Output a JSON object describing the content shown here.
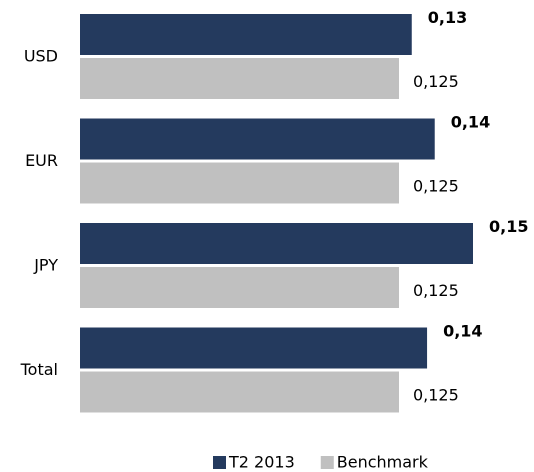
{
  "chart_data": {
    "type": "hbar",
    "categories": [
      "USD",
      "EUR",
      "JPY",
      "Total"
    ],
    "series": [
      {
        "name": "T2 2013",
        "color": "#243a5e",
        "values": [
          0.13,
          0.139,
          0.154,
          0.136
        ],
        "value_labels": [
          "0,13",
          "0,14",
          "0,15",
          "0,14"
        ]
      },
      {
        "name": "Benchmark",
        "color": "#c0c0c0",
        "values": [
          0.125,
          0.125,
          0.125,
          0.125
        ],
        "value_labels": [
          "0,125",
          "0,125",
          "0,125",
          "0,125"
        ]
      }
    ],
    "legend": "bottom"
  }
}
